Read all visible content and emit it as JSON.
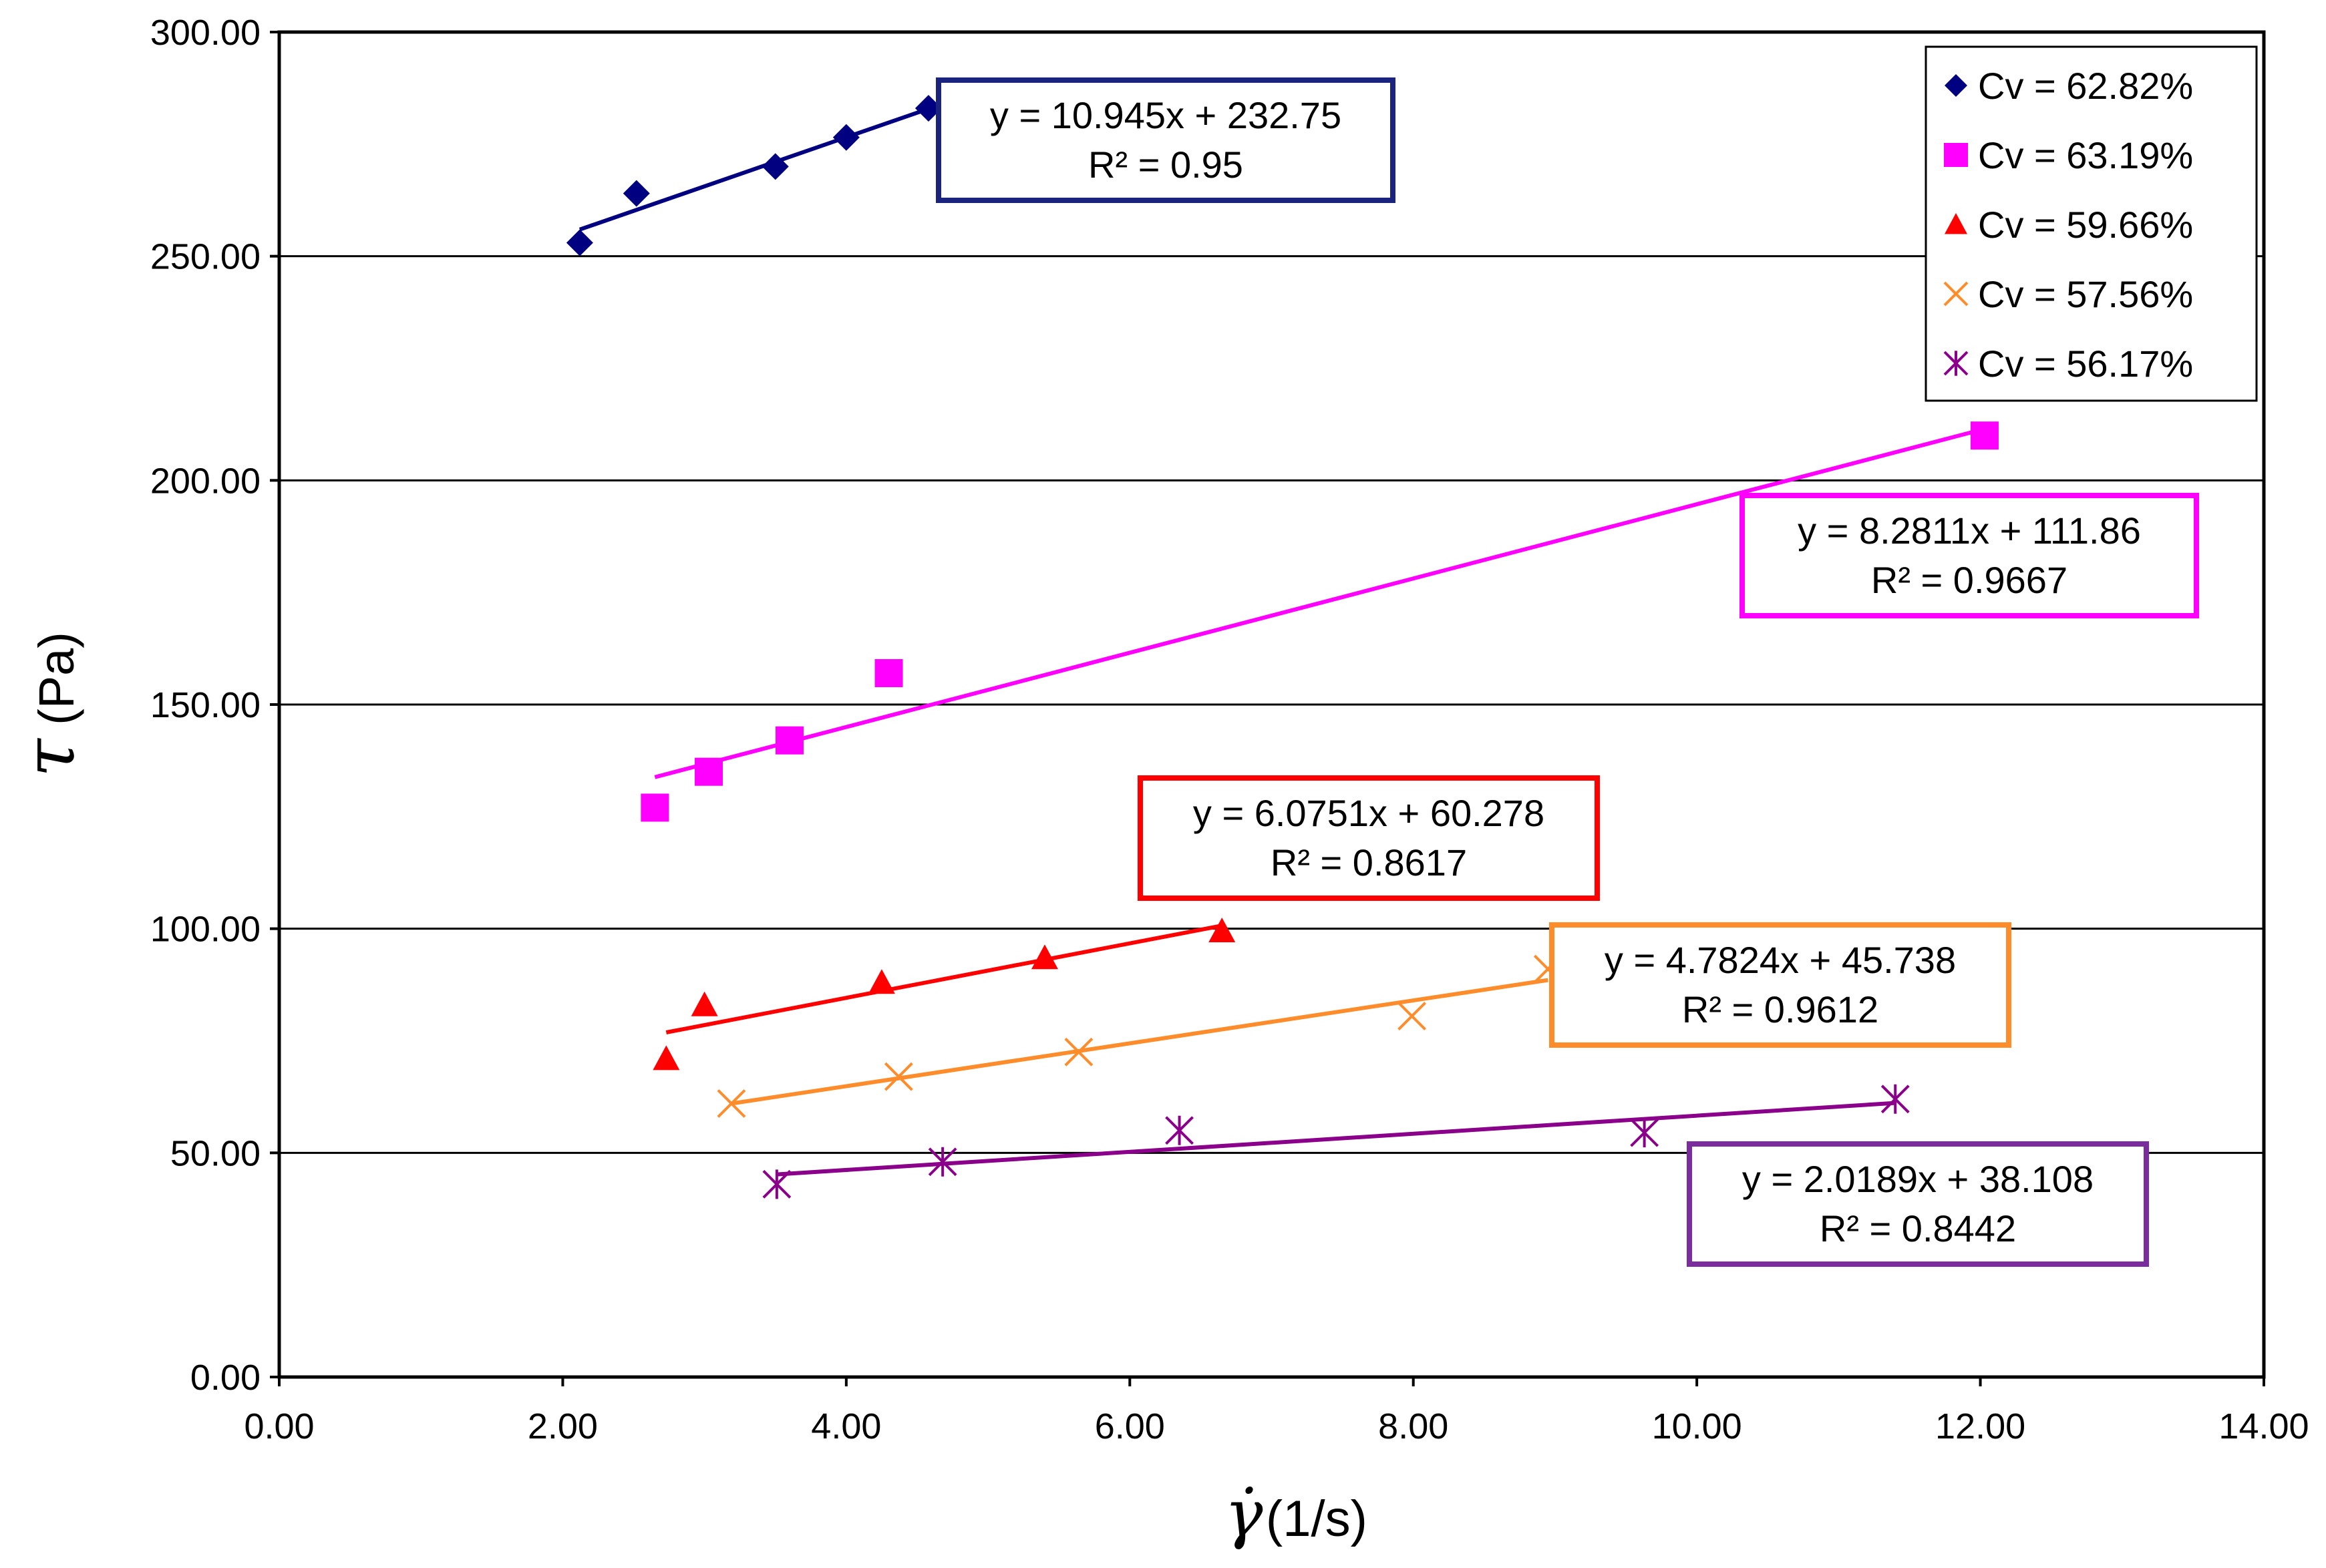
{
  "chart_data": {
    "type": "scatter",
    "title": "",
    "xlabel": "γ̇(1/s)",
    "xlabel_symbol": "γ̇",
    "xlabel_unit": "(1/s)",
    "ylabel": "τ (Pa)",
    "ylabel_symbol": "τ",
    "ylabel_unit": "(Pa)",
    "xlim": [
      0,
      14
    ],
    "ylim": [
      0,
      300
    ],
    "x_ticks": [
      "0.00",
      "2.00",
      "4.00",
      "6.00",
      "8.00",
      "10.00",
      "12.00",
      "14.00"
    ],
    "y_ticks": [
      "0.00",
      "50.00",
      "100.00",
      "150.00",
      "200.00",
      "250.00",
      "300.00"
    ],
    "y_tick_values": [
      0,
      50,
      100,
      150,
      200,
      250,
      300
    ],
    "x_tick_values": [
      0,
      2,
      4,
      6,
      8,
      10,
      12,
      14
    ],
    "grid": "horizontal",
    "legend_position": "top-right",
    "series": [
      {
        "name": "Cv = 62.82%",
        "marker": "diamond",
        "color": "#000080",
        "x": [
          2.12,
          2.52,
          3.5,
          4.0,
          4.58
        ],
        "y": [
          253.0,
          264.0,
          270.0,
          276.5,
          283.0
        ],
        "trend": {
          "slope": 10.945,
          "intercept": 232.75,
          "x_range": [
            2.12,
            4.58
          ]
        },
        "equation": "y = 10.945x + 232.75",
        "r2": "R² = 0.95",
        "box_color": "#1a237e"
      },
      {
        "name": "Cv = 63.19%",
        "marker": "square",
        "color": "#ff00ff",
        "x": [
          2.65,
          3.03,
          3.6,
          4.3,
          12.03
        ],
        "y": [
          127.0,
          135.0,
          142.0,
          157.0,
          210.0
        ],
        "trend": {
          "slope": 8.2811,
          "intercept": 111.86,
          "x_range": [
            2.65,
            12.03
          ]
        },
        "equation": "y = 8.2811x + 111.86",
        "r2": "R² = 0.9667",
        "box_color": "#ff00ff"
      },
      {
        "name": "Cv = 59.66%",
        "marker": "triangle",
        "color": "#ff0000",
        "x": [
          2.73,
          3.0,
          4.25,
          5.4,
          6.65
        ],
        "y": [
          71.0,
          83.0,
          88.0,
          93.5,
          99.5
        ],
        "trend": {
          "slope": 6.0751,
          "intercept": 60.278,
          "x_range": [
            2.73,
            6.65
          ]
        },
        "equation": "y = 6.0751x + 60.278",
        "r2": "R² = 0.8617",
        "box_color": "#ff0000"
      },
      {
        "name": "Cv = 57.56%",
        "marker": "x",
        "color": "#ff8c2a",
        "x": [
          3.19,
          4.37,
          5.64,
          7.99,
          8.95
        ],
        "y": [
          61.0,
          67.0,
          72.5,
          80.5,
          91.0
        ],
        "trend": {
          "slope": 4.7824,
          "intercept": 45.738,
          "x_range": [
            3.19,
            8.95
          ]
        },
        "equation": "y = 4.7824x + 45.738",
        "r2": "R² = 0.9612",
        "box_color": "#ff8c2a"
      },
      {
        "name": "Cv = 56.17%",
        "marker": "star",
        "color": "#8b008b",
        "x": [
          3.51,
          4.68,
          6.35,
          9.63,
          11.4
        ],
        "y": [
          43.0,
          48.0,
          55.0,
          54.5,
          62.0
        ],
        "trend": {
          "slope": 2.0189,
          "intercept": 38.108,
          "x_range": [
            3.51,
            11.4
          ]
        },
        "equation": "y = 2.0189x + 38.108",
        "r2": "R² = 0.8442",
        "box_color": "#7b2d9e"
      }
    ]
  }
}
